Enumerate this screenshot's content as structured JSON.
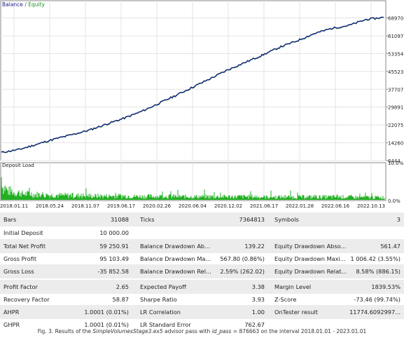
{
  "chart": {
    "legend": {
      "balance": "Balance",
      "separator": "/",
      "equity": "Equity"
    },
    "deposit_label": "Deposit Load",
    "colors": {
      "balance": "#1a1a8c",
      "equity": "#2aa02a",
      "deposit": "#22b022",
      "grid": "#e3e3e3"
    }
  },
  "chart_data": [
    {
      "type": "line",
      "title": "",
      "series": [
        {
          "name": "Balance",
          "values": [
            10000,
            11300,
            13500,
            15800,
            17700,
            19700,
            22300,
            24900,
            27800,
            31300,
            34900,
            38600,
            42300,
            46100,
            49400,
            52600,
            56100,
            58900,
            62100,
            64400,
            65700,
            68300,
            69250
          ]
        },
        {
          "name": "Equity",
          "values": [
            10000,
            11250,
            13450,
            15750,
            17650,
            19650,
            22250,
            24850,
            27750,
            31250,
            34850,
            38550,
            42250,
            46050,
            49350,
            52550,
            56050,
            58850,
            62050,
            64350,
            65650,
            68250,
            69200
          ]
        }
      ],
      "x": [
        "2018.01.01",
        "2018.03.24",
        "2018.06.15",
        "2018.09.05",
        "2018.11.27",
        "2019.02.18",
        "2019.05.11",
        "2019.08.02",
        "2019.10.24",
        "2020.01.15",
        "2020.04.07",
        "2020.06.29",
        "2020.09.20",
        "2020.12.12",
        "2021.03.05",
        "2021.05.27",
        "2021.08.18",
        "2021.11.09",
        "2022.01.31",
        "2022.04.24",
        "2022.07.16",
        "2022.10.07",
        "2022.12.31"
      ],
      "xticks": [
        "2018.01.11",
        "2018.05.24",
        "2018.11.07",
        "2019.06.17",
        "2020.02.26",
        "2020.06.04",
        "2020.12.02",
        "2021.06.17",
        "2022.01.28",
        "2022.06.16",
        "2022.10.13"
      ],
      "yticks": [
        "68970",
        "61097",
        "53354",
        "45523",
        "37707",
        "29891",
        "22075",
        "14260",
        "6444"
      ],
      "ylim": [
        6444,
        76500
      ],
      "grid": true,
      "legend": "top-left"
    },
    {
      "type": "bar",
      "title": "Deposit Load",
      "yticks": [
        "10.0%",
        "0.0%"
      ],
      "ylim": [
        0,
        10
      ],
      "x_range": [
        "2018.01.01",
        "2022.12.31"
      ],
      "values_percent_sample": [
        7.8,
        4.2,
        3.1,
        2.6,
        2.2,
        2.0,
        1.8,
        1.7,
        1.6,
        1.5,
        1.5,
        1.4,
        1.4,
        1.3,
        1.3,
        1.3,
        1.2,
        1.2,
        1.2,
        1.1
      ]
    }
  ],
  "stats": {
    "rows": [
      {
        "c1l": "Bars",
        "c1v": "31088",
        "c2l": "Ticks",
        "c2v": "7364813",
        "c3l": "Symbols",
        "c3v": "3"
      },
      {
        "c1l": "Initial Deposit",
        "c1v": "10 000.00",
        "c2l": "",
        "c2v": "",
        "c3l": "",
        "c3v": ""
      },
      {
        "c1l": "Total Net Profit",
        "c1v": "59 250.91",
        "c2l": "Balance Drawdown Ab...",
        "c2v": "139.22",
        "c3l": "Equity Drawdown Abso...",
        "c3v": "561.47"
      },
      {
        "c1l": "Gross Profit",
        "c1v": "95 103.49",
        "c2l": "Balance Drawdown Ma...",
        "c2v": "567.80 (0.86%)",
        "c3l": "Equity Drawdown Maxi...",
        "c3v": "1 006.42 (3.55%)"
      },
      {
        "c1l": "Gross Loss",
        "c1v": "-35 852.58",
        "c2l": "Balance Drawdown Rel...",
        "c2v": "2.59% (262.02)",
        "c3l": "Equity Drawdown Relat...",
        "c3v": "8.58% (886.15)"
      },
      {
        "c1l": "",
        "c1v": "",
        "c2l": "",
        "c2v": "",
        "c3l": "",
        "c3v": ""
      },
      {
        "c1l": "Profit Factor",
        "c1v": "2.65",
        "c2l": "Expected Payoff",
        "c2v": "3.38",
        "c3l": "Margin Level",
        "c3v": "1839.53%"
      },
      {
        "c1l": "Recovery Factor",
        "c1v": "58.87",
        "c2l": "Sharpe Ratio",
        "c2v": "3.93",
        "c3l": "Z-Score",
        "c3v": "-73.46 (99.74%)"
      },
      {
        "c1l": "AHPR",
        "c1v": "1.0001 (0.01%)",
        "c2l": "LR Correlation",
        "c2v": "1.00",
        "c3l": "OnTester result",
        "c3v": "11774.6092997..."
      },
      {
        "c1l": "GHPR",
        "c1v": "1.0001 (0.01%)",
        "c2l": "LR Standard Error",
        "c2v": "762.67",
        "c3l": "",
        "c3v": ""
      }
    ]
  },
  "caption": {
    "prefix": "Fig. 3. Results of the ",
    "advisor": "SimpleVolumesStage3.ex5",
    "middle": " advisor pass with ",
    "param": "id_pass",
    "suffix": " = 876663 on the interval 2018.01.01 - 2023.01.01"
  }
}
